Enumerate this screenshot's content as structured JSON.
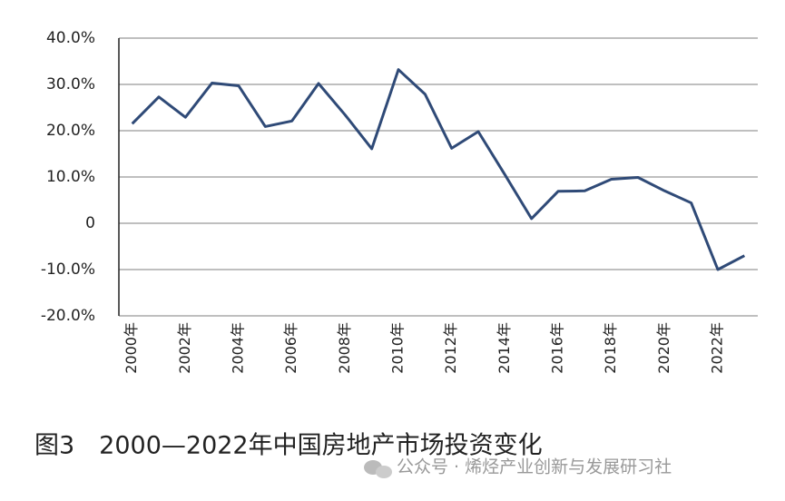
{
  "chart_data": {
    "type": "line",
    "title": "图3　2000—2022年中国房地产市场投资变化",
    "watermark": "公众号 · 烯烃产业创新与发展研习社",
    "categories": [
      "2000年",
      null,
      "2002年",
      null,
      "2004年",
      null,
      "2006年",
      null,
      "2008年",
      null,
      "2010年",
      null,
      "2012年",
      null,
      "2014年",
      null,
      "2016年",
      null,
      "2018年",
      null,
      "2020年",
      null,
      "2022年",
      null
    ],
    "series": [
      {
        "color": "#2f4a77",
        "values": [
          21.5,
          27.3,
          22.9,
          30.3,
          29.7,
          20.9,
          22.1,
          30.2,
          23.4,
          16.1,
          33.2,
          27.9,
          16.2,
          19.8,
          10.5,
          1.0,
          6.9,
          7.0,
          9.5,
          9.9,
          7.0,
          4.4,
          -10.0,
          -7.0
        ]
      }
    ],
    "ylim": [
      -20,
      40
    ],
    "yticks": [
      {
        "value": 40,
        "label": "40.0%"
      },
      {
        "value": 30,
        "label": "30.0%"
      },
      {
        "value": 20,
        "label": "20.0%"
      },
      {
        "value": 10,
        "label": "10.0%"
      },
      0,
      {
        "value": -10,
        "label": "-10.0%"
      },
      {
        "value": -20,
        "label": "-20.0%"
      }
    ],
    "grid": true
  }
}
